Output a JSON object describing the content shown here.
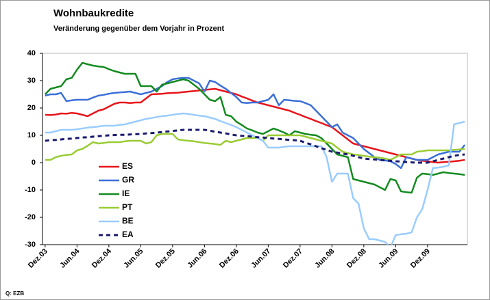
{
  "chart_data": {
    "type": "line",
    "title": "Wohnbaukredite",
    "subtitle": "Veränderung gegenüber dem Vorjahr in Prozent",
    "source": "Q: EZB",
    "categories": [
      "Dez.03",
      null,
      null,
      null,
      null,
      null,
      "Jun.04",
      null,
      null,
      null,
      null,
      null,
      "Dez.04",
      null,
      null,
      null,
      null,
      null,
      "Jun.05",
      null,
      null,
      null,
      null,
      null,
      "Dez.05",
      null,
      null,
      null,
      null,
      null,
      "Jun.06",
      null,
      null,
      null,
      null,
      null,
      "Dez.06",
      null,
      null,
      null,
      null,
      null,
      "Jun.07",
      null,
      null,
      null,
      null,
      null,
      "Dez.07",
      null,
      null,
      null,
      null,
      null,
      "Jun.08",
      null,
      null,
      null,
      null,
      null,
      "Dez.08",
      null,
      null,
      null,
      null,
      null,
      "Jun.09",
      null,
      null,
      null,
      null,
      null,
      "Dez.09",
      null,
      null,
      null,
      null,
      null,
      null,
      null
    ],
    "ylim": [
      -30,
      40
    ],
    "yticks": [
      -30,
      -20,
      -10,
      0,
      10,
      20,
      30,
      40
    ],
    "legend_position": "lower left",
    "series": [
      {
        "name": "ES",
        "color": "#e8141a",
        "style": "solid",
        "values": [
          17.5,
          17.4,
          17.6,
          18,
          17.9,
          18.2,
          18,
          17.5,
          17,
          18,
          19,
          19.5,
          20.5,
          21.5,
          22,
          22,
          21.8,
          22,
          22,
          23.5,
          25,
          25.1,
          25.2,
          25.4,
          25.5,
          25.6,
          25.8,
          26,
          26.2,
          26.4,
          26.6,
          26.8,
          27,
          26.5,
          26,
          25.5,
          25,
          24.2,
          23.5,
          22.7,
          22,
          21.5,
          21,
          20.5,
          20,
          19.5,
          19,
          18.2,
          17.5,
          16.7,
          16,
          15.2,
          14.5,
          13.7,
          13,
          11.5,
          10,
          8.5,
          7,
          6.5,
          6,
          5.5,
          5,
          4.5,
          4,
          3.5,
          3,
          2.5,
          2,
          1.5,
          1,
          0.7,
          0.5,
          0.2,
          0,
          0.2,
          0.3,
          0.5,
          0.7,
          1
        ]
      },
      {
        "name": "GR",
        "color": "#3a6fd8",
        "style": "solid",
        "values": [
          24.5,
          25,
          25,
          25.5,
          22.5,
          22.8,
          23,
          23,
          23,
          23.8,
          24.5,
          24.8,
          25.2,
          25.5,
          25.7,
          25.8,
          26,
          25.5,
          25,
          25.5,
          26,
          27,
          28,
          29.5,
          30.5,
          30.8,
          31,
          31,
          30,
          29,
          26,
          30,
          29.5,
          28.2,
          27,
          25.5,
          24,
          22,
          21.8,
          22,
          22,
          22.5,
          23,
          25,
          21,
          23,
          22.8,
          22.6,
          22.5,
          21.8,
          21,
          19,
          17,
          15,
          13,
          14,
          11,
          10,
          9,
          7,
          5,
          3.5,
          2,
          1,
          0.8,
          0.5,
          -0.5,
          -2,
          2,
          1.5,
          1,
          1,
          1,
          2,
          3,
          3.5,
          4,
          4,
          4,
          6.5
        ]
      },
      {
        "name": "IE",
        "color": "#138a1f",
        "style": "solid",
        "values": [
          25,
          27,
          27.5,
          28,
          30.5,
          31,
          34,
          36.5,
          36,
          35.5,
          35.2,
          35,
          34.2,
          33.5,
          33,
          32.5,
          32.5,
          32.5,
          28,
          28,
          28,
          26,
          28.5,
          29,
          29.5,
          30,
          30.5,
          30,
          28.5,
          27,
          25,
          23,
          22.5,
          24,
          17.5,
          17,
          15,
          13.8,
          12.5,
          11.8,
          11,
          10.5,
          11.5,
          12.5,
          11.8,
          11,
          10,
          11.5,
          11,
          10.5,
          10.2,
          10,
          9,
          7,
          5,
          3,
          2.5,
          2,
          -6,
          -6.5,
          -7,
          -7.5,
          -8,
          -9,
          -10,
          -6,
          -6.5,
          -10.5,
          -10.8,
          -11,
          -5.5,
          -4,
          -4.2,
          -4.5,
          -4,
          -3.5,
          -3.8,
          -4,
          -4.2,
          -4.5
        ]
      },
      {
        "name": "PT",
        "color": "#99cc33",
        "style": "solid",
        "values": [
          1,
          1,
          2,
          2.5,
          2.8,
          3,
          4.5,
          5,
          6.2,
          7.5,
          7,
          7.2,
          7.5,
          7.5,
          7.5,
          7.8,
          8,
          8,
          8,
          7,
          7.5,
          10,
          10.5,
          10.5,
          10.5,
          8.5,
          8.2,
          8,
          7.8,
          7.5,
          7.2,
          7,
          6.8,
          6.5,
          8,
          7.5,
          8,
          8.5,
          9,
          9,
          9,
          8,
          10,
          10,
          10,
          10,
          10,
          10,
          10,
          9.5,
          9,
          8.5,
          8,
          7.5,
          7,
          5.5,
          4,
          3.5,
          3,
          2.8,
          2.5,
          2.2,
          2,
          1.8,
          1.5,
          1,
          2,
          3,
          3,
          3,
          4,
          4.2,
          4.5,
          4.5,
          4.5,
          4.5,
          4.5,
          4.7,
          4.8,
          5
        ]
      },
      {
        "name": "BE",
        "color": "#99ccff",
        "style": "solid",
        "values": [
          11,
          11,
          11.5,
          12,
          12,
          12,
          12.2,
          12.5,
          12.8,
          13,
          13.2,
          13.5,
          13.5,
          13.5,
          13.8,
          14,
          14.5,
          15,
          15.5,
          16,
          16.3,
          16.7,
          17,
          17.2,
          17.5,
          17.8,
          18,
          17.8,
          17.5,
          17.2,
          17,
          16.5,
          16,
          15.2,
          14.5,
          13.8,
          13,
          12,
          11,
          10,
          9,
          8,
          5.5,
          5.5,
          5.5,
          5.8,
          6,
          6,
          6,
          6,
          6,
          6,
          6,
          2,
          -7,
          -4,
          -4,
          -4,
          -13,
          -15,
          -24,
          -28,
          -28,
          -28.5,
          -29,
          -31,
          -26.5,
          -26.2,
          -26,
          -25.5,
          -20,
          -17,
          -10,
          -2,
          -1.8,
          -1.5,
          -1,
          14,
          14.5,
          15
        ]
      },
      {
        "name": "EA",
        "color": "#1a1a6e",
        "style": "dashed",
        "values": [
          8,
          8.2,
          8.3,
          8.5,
          8.7,
          8.8,
          9,
          9.2,
          9.3,
          9.5,
          9.7,
          9.8,
          10,
          10.1,
          10.2,
          10.2,
          10.3,
          10.4,
          10.5,
          10.7,
          10.8,
          11,
          11.2,
          11.4,
          11.6,
          11.8,
          12,
          12,
          12,
          12,
          12,
          11.7,
          11.3,
          11,
          10.7,
          10.3,
          10,
          9.8,
          9.7,
          9.5,
          9.3,
          9.2,
          9,
          8.8,
          8.7,
          8.5,
          8.3,
          8.2,
          8,
          7.3,
          6.7,
          6,
          5.3,
          4.7,
          4,
          3.7,
          3.3,
          3,
          2.5,
          2,
          1.5,
          1.3,
          1.2,
          1,
          0.8,
          0.7,
          0.5,
          0.4,
          0.2,
          0.1,
          0,
          0,
          0,
          0.5,
          1,
          1.5,
          2,
          2.5,
          2.8,
          3
        ]
      }
    ]
  }
}
